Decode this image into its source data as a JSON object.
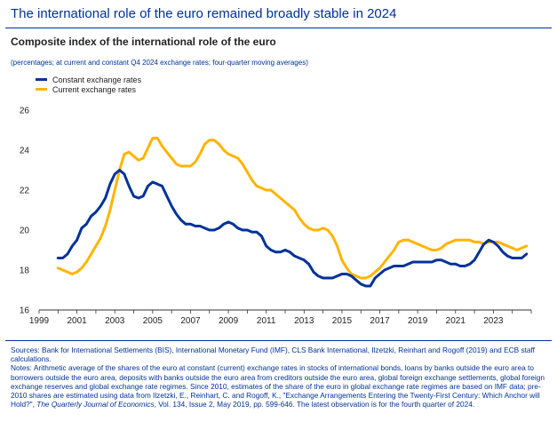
{
  "header": {
    "title": "The international role of the euro remained broadly stable in 2024",
    "subtitle": "Composite index of the international role of the euro",
    "units_note": "(percentages; at current and constant Q4 2024 exchange rates; four-quarter moving averages)"
  },
  "colors": {
    "constant": "#003299",
    "current": "#FFB400",
    "axis": "#333333",
    "title": "#003299"
  },
  "chart_data": {
    "type": "line",
    "title": "Composite index of the international role of the euro",
    "xlabel": "",
    "ylabel": "",
    "xlim": [
      1999,
      2025
    ],
    "ylim": [
      16,
      26
    ],
    "yticks": [
      16,
      18,
      20,
      22,
      24,
      26
    ],
    "xticks": [
      "1999",
      "2001",
      "2003",
      "2005",
      "2007",
      "2009",
      "2011",
      "2013",
      "2015",
      "2017",
      "2019",
      "2021",
      "2023"
    ],
    "legend_position": "top-left",
    "grid": false,
    "series": [
      {
        "name": "Constant exchange rates",
        "color": "#003299",
        "points": [
          [
            2000.0,
            18.6
          ],
          [
            2000.25,
            18.6
          ],
          [
            2000.5,
            18.8
          ],
          [
            2000.75,
            19.2
          ],
          [
            2001.0,
            19.5
          ],
          [
            2001.25,
            20.1
          ],
          [
            2001.5,
            20.3
          ],
          [
            2001.75,
            20.7
          ],
          [
            2002.0,
            20.9
          ],
          [
            2002.25,
            21.2
          ],
          [
            2002.5,
            21.6
          ],
          [
            2002.75,
            22.3
          ],
          [
            2003.0,
            22.8
          ],
          [
            2003.25,
            23.0
          ],
          [
            2003.5,
            22.8
          ],
          [
            2003.75,
            22.2
          ],
          [
            2004.0,
            21.7
          ],
          [
            2004.25,
            21.6
          ],
          [
            2004.5,
            21.7
          ],
          [
            2004.75,
            22.2
          ],
          [
            2005.0,
            22.4
          ],
          [
            2005.25,
            22.3
          ],
          [
            2005.5,
            22.2
          ],
          [
            2005.75,
            21.7
          ],
          [
            2006.0,
            21.2
          ],
          [
            2006.25,
            20.8
          ],
          [
            2006.5,
            20.5
          ],
          [
            2006.75,
            20.3
          ],
          [
            2007.0,
            20.3
          ],
          [
            2007.25,
            20.2
          ],
          [
            2007.5,
            20.2
          ],
          [
            2007.75,
            20.1
          ],
          [
            2008.0,
            20.0
          ],
          [
            2008.25,
            20.0
          ],
          [
            2008.5,
            20.1
          ],
          [
            2008.75,
            20.3
          ],
          [
            2009.0,
            20.4
          ],
          [
            2009.25,
            20.3
          ],
          [
            2009.5,
            20.1
          ],
          [
            2009.75,
            20.0
          ],
          [
            2010.0,
            20.0
          ],
          [
            2010.25,
            19.9
          ],
          [
            2010.5,
            19.9
          ],
          [
            2010.75,
            19.7
          ],
          [
            2011.0,
            19.2
          ],
          [
            2011.25,
            19.0
          ],
          [
            2011.5,
            18.9
          ],
          [
            2011.75,
            18.9
          ],
          [
            2012.0,
            19.0
          ],
          [
            2012.25,
            18.9
          ],
          [
            2012.5,
            18.7
          ],
          [
            2012.75,
            18.6
          ],
          [
            2013.0,
            18.5
          ],
          [
            2013.25,
            18.3
          ],
          [
            2013.5,
            17.9
          ],
          [
            2013.75,
            17.7
          ],
          [
            2014.0,
            17.6
          ],
          [
            2014.25,
            17.6
          ],
          [
            2014.5,
            17.6
          ],
          [
            2014.75,
            17.7
          ],
          [
            2015.0,
            17.8
          ],
          [
            2015.25,
            17.8
          ],
          [
            2015.5,
            17.7
          ],
          [
            2015.75,
            17.5
          ],
          [
            2016.0,
            17.3
          ],
          [
            2016.25,
            17.2
          ],
          [
            2016.5,
            17.2
          ],
          [
            2016.75,
            17.6
          ],
          [
            2017.0,
            17.8
          ],
          [
            2017.25,
            18.0
          ],
          [
            2017.5,
            18.1
          ],
          [
            2017.75,
            18.2
          ],
          [
            2018.0,
            18.2
          ],
          [
            2018.25,
            18.2
          ],
          [
            2018.5,
            18.3
          ],
          [
            2018.75,
            18.4
          ],
          [
            2019.0,
            18.4
          ],
          [
            2019.25,
            18.4
          ],
          [
            2019.5,
            18.4
          ],
          [
            2019.75,
            18.4
          ],
          [
            2020.0,
            18.5
          ],
          [
            2020.25,
            18.5
          ],
          [
            2020.5,
            18.4
          ],
          [
            2020.75,
            18.3
          ],
          [
            2021.0,
            18.3
          ],
          [
            2021.25,
            18.2
          ],
          [
            2021.5,
            18.2
          ],
          [
            2021.75,
            18.3
          ],
          [
            2022.0,
            18.5
          ],
          [
            2022.25,
            18.9
          ],
          [
            2022.5,
            19.3
          ],
          [
            2022.75,
            19.5
          ],
          [
            2023.0,
            19.4
          ],
          [
            2023.25,
            19.2
          ],
          [
            2023.5,
            18.9
          ],
          [
            2023.75,
            18.7
          ],
          [
            2024.0,
            18.6
          ],
          [
            2024.25,
            18.6
          ],
          [
            2024.5,
            18.6
          ],
          [
            2024.75,
            18.8
          ]
        ]
      },
      {
        "name": "Current exchange rates",
        "color": "#FFB400",
        "points": [
          [
            2000.0,
            18.1
          ],
          [
            2000.25,
            18.0
          ],
          [
            2000.5,
            17.9
          ],
          [
            2000.75,
            17.8
          ],
          [
            2001.0,
            17.9
          ],
          [
            2001.25,
            18.1
          ],
          [
            2001.5,
            18.4
          ],
          [
            2001.75,
            18.8
          ],
          [
            2002.0,
            19.2
          ],
          [
            2002.25,
            19.6
          ],
          [
            2002.5,
            20.2
          ],
          [
            2002.75,
            21.0
          ],
          [
            2003.0,
            22.0
          ],
          [
            2003.25,
            23.0
          ],
          [
            2003.5,
            23.8
          ],
          [
            2003.75,
            23.9
          ],
          [
            2004.0,
            23.7
          ],
          [
            2004.25,
            23.5
          ],
          [
            2004.5,
            23.6
          ],
          [
            2004.75,
            24.1
          ],
          [
            2005.0,
            24.6
          ],
          [
            2005.25,
            24.6
          ],
          [
            2005.5,
            24.2
          ],
          [
            2005.75,
            23.9
          ],
          [
            2006.0,
            23.6
          ],
          [
            2006.25,
            23.3
          ],
          [
            2006.5,
            23.2
          ],
          [
            2006.75,
            23.2
          ],
          [
            2007.0,
            23.2
          ],
          [
            2007.25,
            23.4
          ],
          [
            2007.5,
            23.8
          ],
          [
            2007.75,
            24.3
          ],
          [
            2008.0,
            24.5
          ],
          [
            2008.25,
            24.5
          ],
          [
            2008.5,
            24.3
          ],
          [
            2008.75,
            24.0
          ],
          [
            2009.0,
            23.8
          ],
          [
            2009.25,
            23.7
          ],
          [
            2009.5,
            23.6
          ],
          [
            2009.75,
            23.3
          ],
          [
            2010.0,
            22.9
          ],
          [
            2010.25,
            22.5
          ],
          [
            2010.5,
            22.2
          ],
          [
            2010.75,
            22.1
          ],
          [
            2011.0,
            22.0
          ],
          [
            2011.25,
            22.0
          ],
          [
            2011.5,
            21.8
          ],
          [
            2011.75,
            21.6
          ],
          [
            2012.0,
            21.4
          ],
          [
            2012.25,
            21.2
          ],
          [
            2012.5,
            21.0
          ],
          [
            2012.75,
            20.6
          ],
          [
            2013.0,
            20.3
          ],
          [
            2013.25,
            20.1
          ],
          [
            2013.5,
            20.0
          ],
          [
            2013.75,
            20.0
          ],
          [
            2014.0,
            20.1
          ],
          [
            2014.25,
            20.0
          ],
          [
            2014.5,
            19.7
          ],
          [
            2014.75,
            19.2
          ],
          [
            2015.0,
            18.5
          ],
          [
            2015.25,
            18.1
          ],
          [
            2015.5,
            17.8
          ],
          [
            2015.75,
            17.7
          ],
          [
            2016.0,
            17.6
          ],
          [
            2016.25,
            17.6
          ],
          [
            2016.5,
            17.7
          ],
          [
            2016.75,
            17.9
          ],
          [
            2017.0,
            18.1
          ],
          [
            2017.25,
            18.4
          ],
          [
            2017.5,
            18.7
          ],
          [
            2017.75,
            19.0
          ],
          [
            2018.0,
            19.4
          ],
          [
            2018.25,
            19.5
          ],
          [
            2018.5,
            19.5
          ],
          [
            2018.75,
            19.4
          ],
          [
            2019.0,
            19.3
          ],
          [
            2019.25,
            19.2
          ],
          [
            2019.5,
            19.1
          ],
          [
            2019.75,
            19.0
          ],
          [
            2020.0,
            19.0
          ],
          [
            2020.25,
            19.1
          ],
          [
            2020.5,
            19.3
          ],
          [
            2020.75,
            19.4
          ],
          [
            2021.0,
            19.5
          ],
          [
            2021.25,
            19.5
          ],
          [
            2021.5,
            19.5
          ],
          [
            2021.75,
            19.5
          ],
          [
            2022.0,
            19.4
          ],
          [
            2022.25,
            19.4
          ],
          [
            2022.5,
            19.3
          ],
          [
            2022.75,
            19.4
          ],
          [
            2023.0,
            19.4
          ],
          [
            2023.25,
            19.4
          ],
          [
            2023.5,
            19.3
          ],
          [
            2023.75,
            19.2
          ],
          [
            2024.0,
            19.1
          ],
          [
            2024.25,
            19.0
          ],
          [
            2024.5,
            19.1
          ],
          [
            2024.75,
            19.2
          ]
        ]
      }
    ]
  },
  "footer": {
    "sources": "Sources: Bank for International Settlements (BIS), International Monetary Fund (IMF), CLS Bank International, Ilzetzki, Reinhart and Rogoff (2019) and ECB staff calculations.",
    "notes": "Notes: Arithmetic average of the shares of the euro at constant (current) exchange rates in stocks of international bonds, loans by banks outside the euro area to borrowers outside the euro area, deposits with banks outside the euro area from creditors outside the euro area, global foreign exchange settlements, global foreign exchange reserves and global exchange rate regimes. Since 2010, estimates of the share of the euro in global exchange rate regimes are based on IMF data; pre-2010 shares are estimated using data from Ilzetzki, E., Reinhart, C. and Rogoff, K., \"Exchange Arrangements Entering the Twenty-First Century: Which Anchor will Hold?\",",
    "citation_journal": "The Quarterly Journal of Economics",
    "citation_rest": ", Vol. 134, Issue 2, May 2019, pp. 599-646. The latest observation is for the fourth quarter of 2024."
  }
}
